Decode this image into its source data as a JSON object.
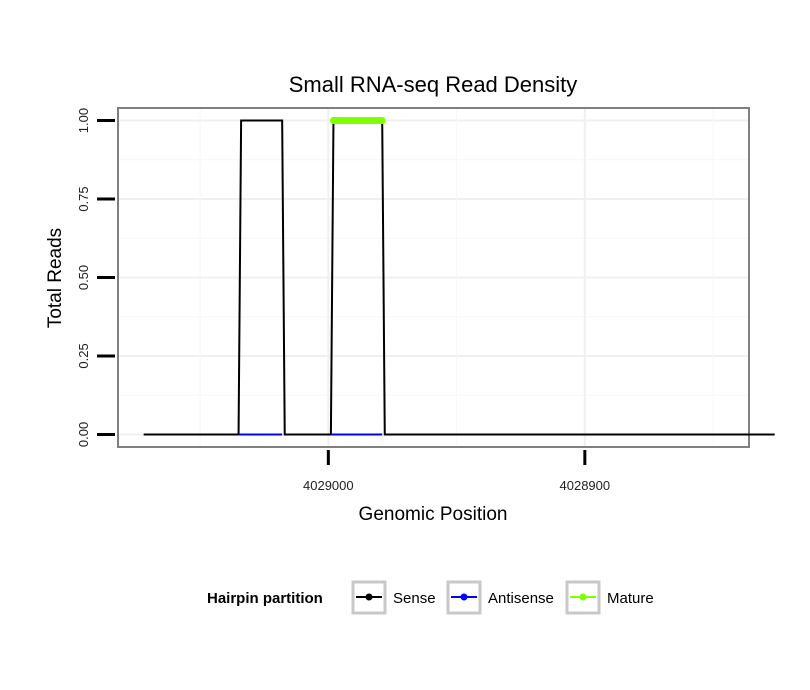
{
  "chart_data": {
    "type": "line",
    "title": "Small RNA-seq Read Density",
    "xlabel": "Genomic Position",
    "ylabel": "Total Reads",
    "x_reversed": true,
    "xlim": [
      4029082,
      4028836
    ],
    "ylim": [
      -0.04,
      1.04
    ],
    "x_ticks": [
      4029000,
      4028900
    ],
    "x_tick_labels": [
      "4029000",
      "4028900"
    ],
    "y_ticks": [
      0,
      0.25,
      0.5,
      0.75,
      1
    ],
    "y_tick_labels": [
      "0.00",
      "0.25",
      "0.50",
      "0.75",
      "1.00"
    ],
    "grid": true,
    "series": [
      {
        "name": "Sense",
        "color": "#000000",
        "x": [
          4029072,
          4029035,
          4029034,
          4029018,
          4029017,
          4028999,
          4028998,
          4028979,
          4028978,
          4028826
        ],
        "y": [
          0,
          0,
          1,
          1,
          0,
          0,
          1,
          1,
          0,
          0
        ]
      },
      {
        "name": "Antisense",
        "color": "#0000ff",
        "x": [
          4029035,
          4029018
        ],
        "y": [
          0,
          0
        ]
      },
      {
        "name": "Antisense",
        "color": "#0000ff",
        "x": [
          4028999,
          4028979
        ],
        "y": [
          0,
          0
        ]
      },
      {
        "name": "Mature",
        "color": "#7fff00",
        "x": [
          4028998,
          4028979
        ],
        "y": [
          1,
          1
        ]
      }
    ],
    "legend": {
      "title": "Hairpin partition",
      "placement": "bottom",
      "entries": [
        {
          "label": "Sense",
          "color": "#000000"
        },
        {
          "label": "Antisense",
          "color": "#0000ff"
        },
        {
          "label": "Mature",
          "color": "#7fff00"
        }
      ]
    }
  }
}
